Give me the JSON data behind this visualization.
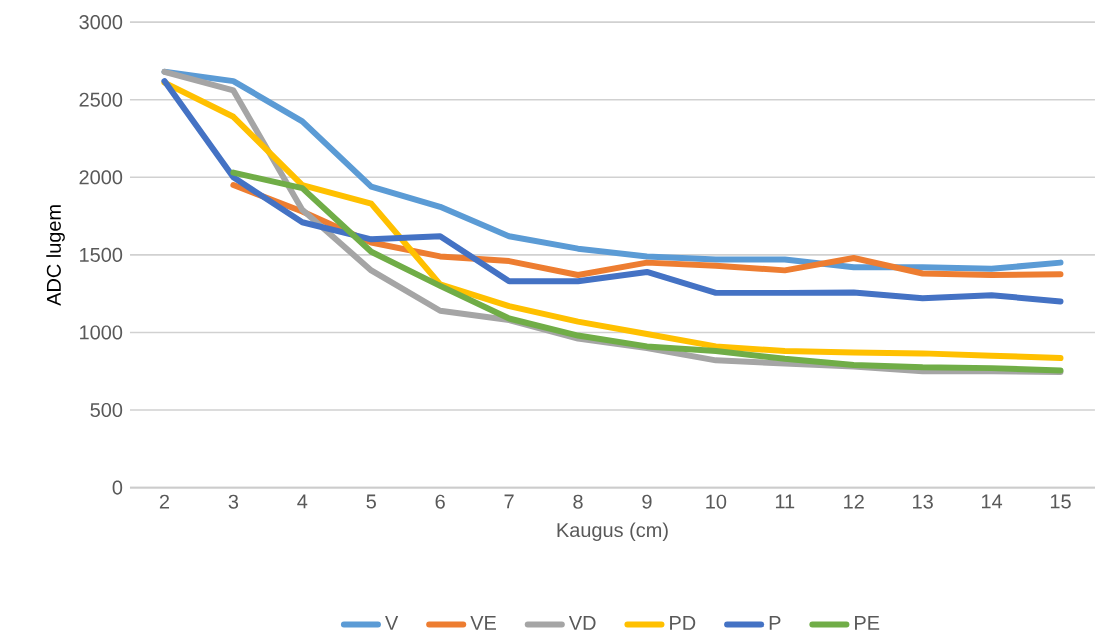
{
  "chart_data": {
    "type": "line",
    "xlabel": "Kaugus (cm)",
    "ylabel": "ADC lugem",
    "categories": [
      "2",
      "3",
      "4",
      "5",
      "6",
      "7",
      "8",
      "9",
      "10",
      "11",
      "12",
      "13",
      "14",
      "15"
    ],
    "ylim": [
      0,
      3000
    ],
    "yticks": [
      0,
      500,
      1000,
      1500,
      2000,
      2500,
      3000
    ],
    "grid": "y",
    "legend": "bottom",
    "marker": "none",
    "series": [
      {
        "name": "V",
        "color": "#5b9bd5",
        "values": [
          2680,
          2620,
          2360,
          1940,
          1810,
          1620,
          1540,
          1490,
          1470,
          1470,
          1420,
          1420,
          1410,
          1450
        ]
      },
      {
        "name": "VE",
        "color": "#ed7d31",
        "values": [
          null,
          1950,
          1780,
          1580,
          1490,
          1460,
          1370,
          1450,
          1430,
          1400,
          1480,
          1380,
          1370,
          1375
        ]
      },
      {
        "name": "VD",
        "color": "#a5a5a5",
        "values": [
          2680,
          2560,
          1790,
          1400,
          1140,
          1080,
          960,
          900,
          820,
          800,
          780,
          750,
          750,
          745
        ]
      },
      {
        "name": "PD",
        "color": "#ffc000",
        "values": [
          2610,
          2390,
          1950,
          1830,
          1310,
          1170,
          1070,
          990,
          910,
          880,
          870,
          865,
          850,
          835
        ]
      },
      {
        "name": "P",
        "color": "#4472c4",
        "values": [
          2620,
          2000,
          1710,
          1600,
          1620,
          1330,
          1330,
          1390,
          1255,
          1255,
          1258,
          1220,
          1240,
          1200
        ]
      },
      {
        "name": "PE",
        "color": "#70ad47",
        "values": [
          null,
          2030,
          1930,
          1520,
          1300,
          1090,
          980,
          910,
          880,
          830,
          790,
          775,
          770,
          755
        ]
      }
    ]
  }
}
